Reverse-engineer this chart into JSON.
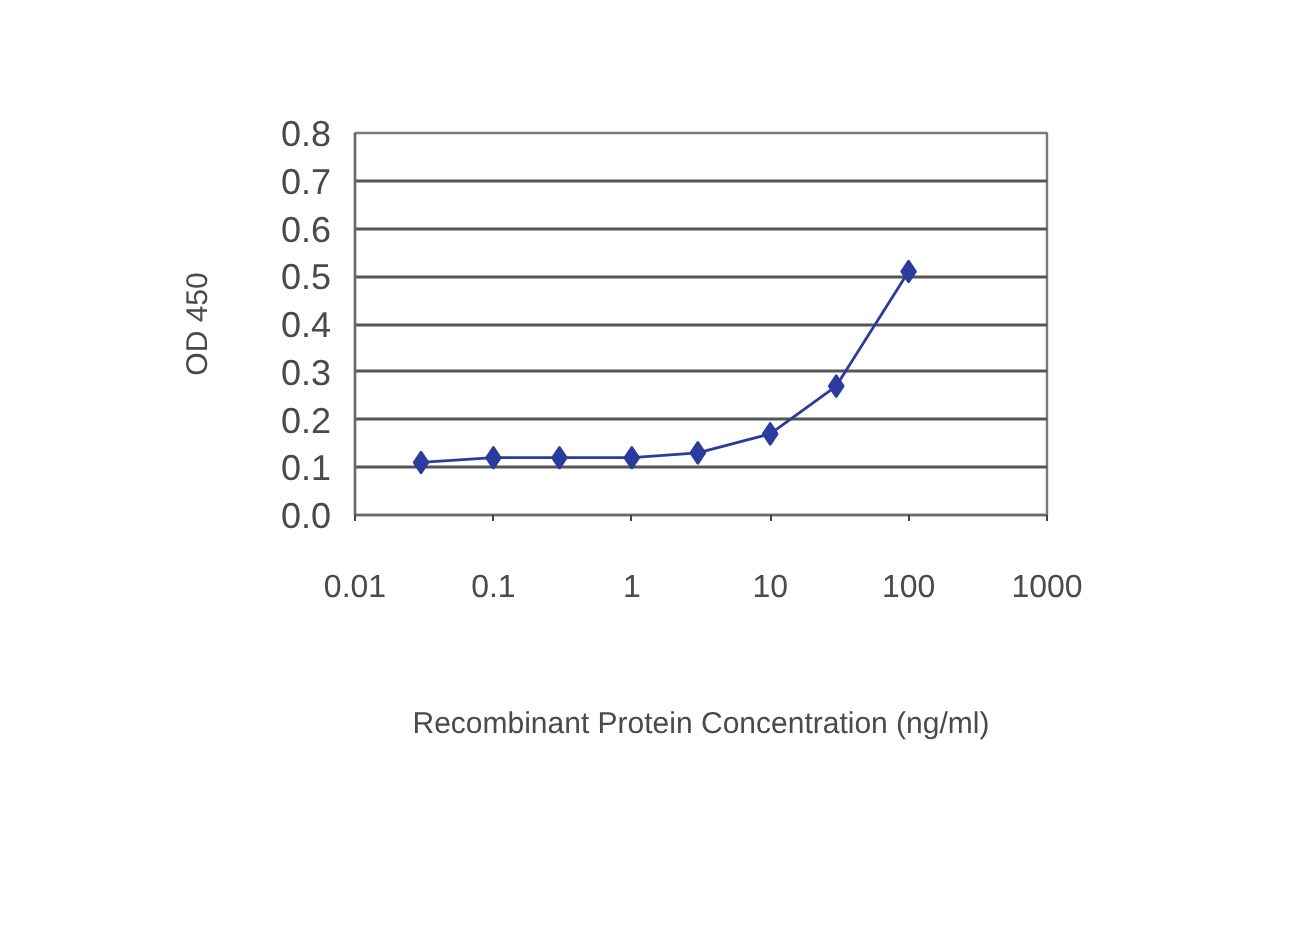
{
  "chart_data": {
    "type": "line",
    "xlabel": "Recombinant Protein Concentration (ng/ml)",
    "ylabel": "OD 450",
    "x": [
      0.03,
      0.1,
      0.3,
      1,
      3,
      10,
      30,
      100
    ],
    "series": [
      {
        "color": "#2c3b9e",
        "values": [
          0.11,
          0.12,
          0.12,
          0.12,
          0.13,
          0.17,
          0.27,
          0.51
        ]
      }
    ],
    "xlim": [
      0.01,
      1000
    ],
    "ylim": [
      0,
      0.8
    ],
    "xticks": [
      0.01,
      0.1,
      1,
      10,
      100,
      1000
    ],
    "yticks": [
      {
        "value": 0,
        "label": "0.0"
      },
      0.1,
      0.2,
      0.3,
      0.4,
      0.5,
      0.6,
      0.7,
      0.8
    ],
    "log": "x",
    "grid": "y",
    "marker": "diamond",
    "line_style": "solid"
  }
}
